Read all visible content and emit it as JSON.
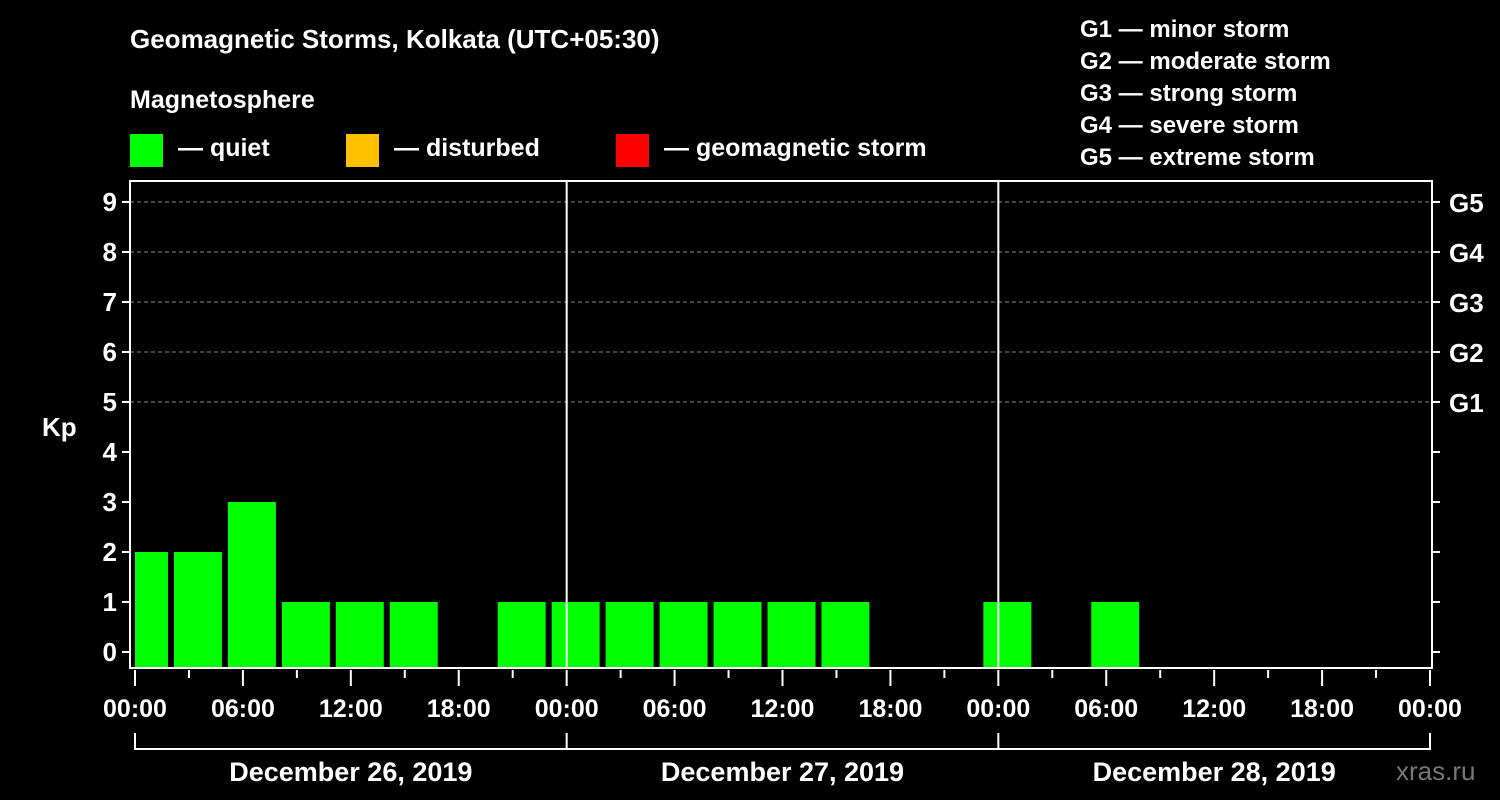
{
  "chart_data": {
    "type": "bar",
    "title": "Geomagnetic Storms, Kolkata (UTC+05:30)",
    "subtitle": "Magnetosphere",
    "ylabel": "Kp",
    "ylim": [
      0,
      9
    ],
    "yticks": [
      "0",
      "1",
      "2",
      "3",
      "4",
      "5",
      "6",
      "7",
      "8",
      "9"
    ],
    "right_ticks": [
      {
        "kp": 5,
        "label": "G1"
      },
      {
        "kp": 6,
        "label": "G2"
      },
      {
        "kp": 7,
        "label": "G3"
      },
      {
        "kp": 8,
        "label": "G4"
      },
      {
        "kp": 9,
        "label": "G5"
      }
    ],
    "x_range_hours": [
      0,
      72
    ],
    "xtick_labels": [
      "00:00",
      "06:00",
      "12:00",
      "18:00",
      "00:00",
      "06:00",
      "12:00",
      "18:00",
      "00:00",
      "06:00",
      "12:00",
      "18:00",
      "00:00"
    ],
    "days": [
      "December 26, 2019",
      "December 27, 2019",
      "December 28, 2019"
    ],
    "bar_interval_hours": 3,
    "first_bar_center_hour": 0.5,
    "values": [
      2,
      2,
      3,
      1,
      1,
      1,
      null,
      1,
      1,
      1,
      1,
      1,
      1,
      1,
      null,
      null,
      1,
      null,
      1
    ],
    "legend": [
      {
        "label": "— quiet",
        "color": "#00ff00"
      },
      {
        "label": "— disturbed",
        "color": "#ffc000"
      },
      {
        "label": "— geomagnetic storm",
        "color": "#ff0000"
      }
    ],
    "storm_scale": [
      "G1 — minor storm",
      "G2 — moderate storm",
      "G3 — strong storm",
      "G4 — severe storm",
      "G5 — extreme storm"
    ]
  },
  "watermark": "xras.ru"
}
